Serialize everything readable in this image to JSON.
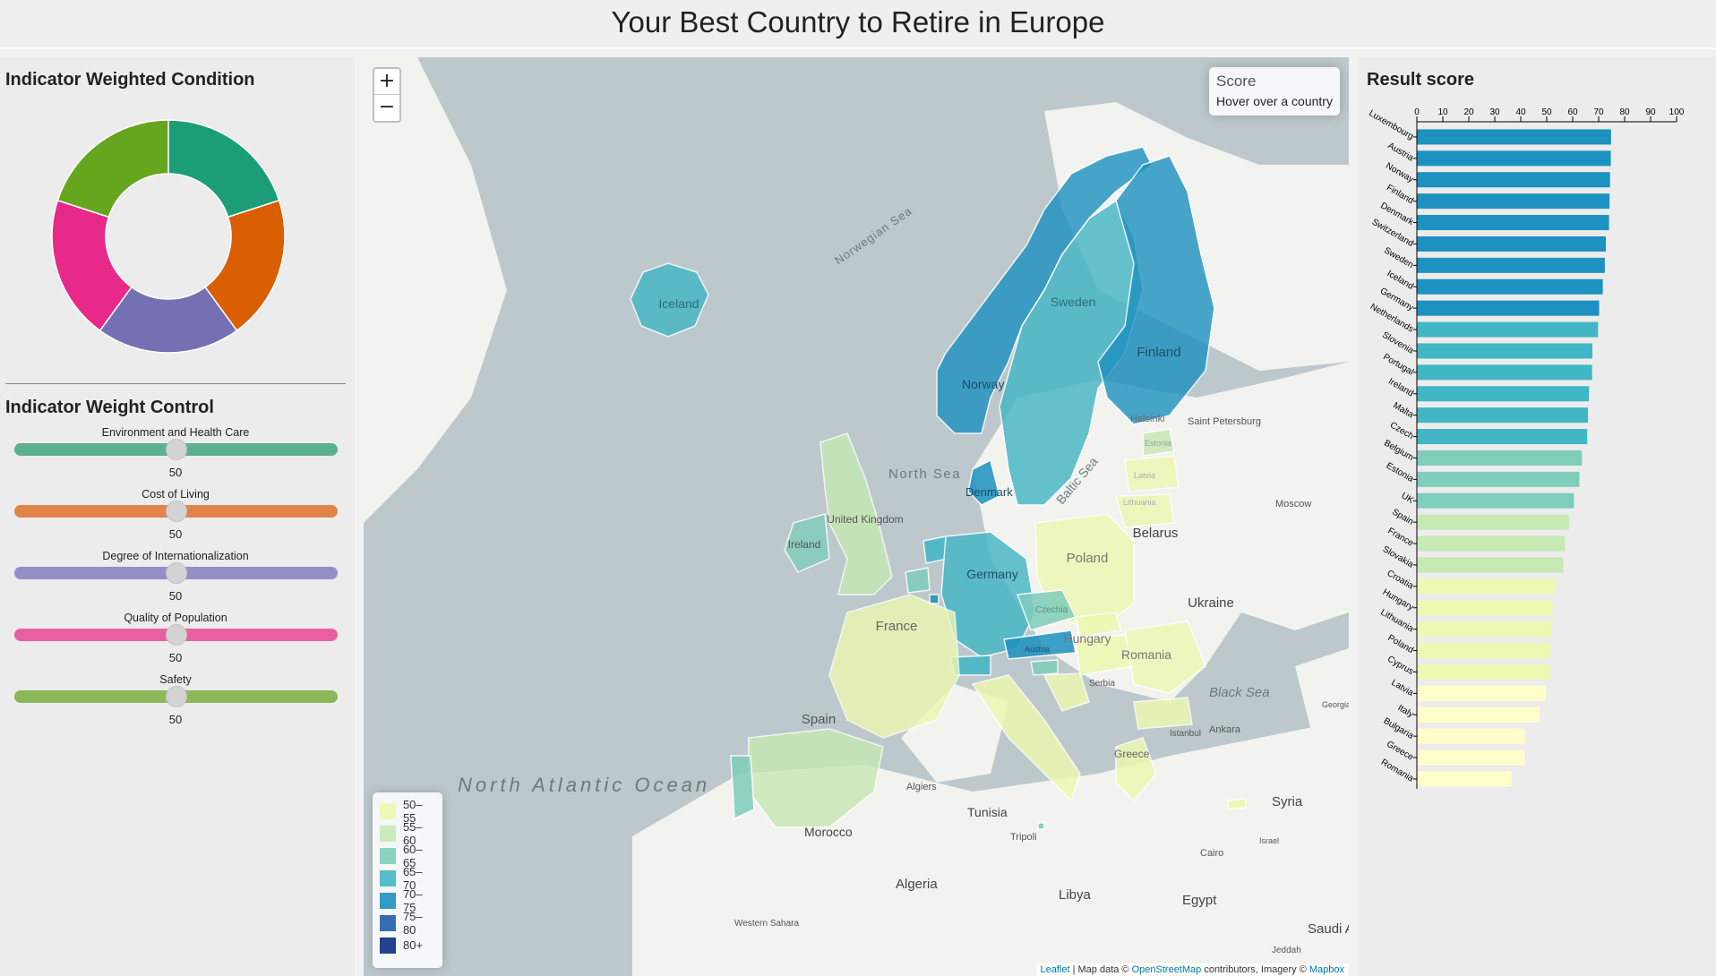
{
  "page": {
    "title": "Your Best Country to Retire in Europe"
  },
  "donut": {
    "title": "Indicator Weighted Condition",
    "segments": [
      {
        "name": "Environment and Health Care",
        "weight": 50,
        "color": "#1b9e77"
      },
      {
        "name": "Cost of Living",
        "weight": 50,
        "color": "#d95f02"
      },
      {
        "name": "Degree of Internationalization",
        "weight": 50,
        "color": "#7570b3"
      },
      {
        "name": "Quality of Population",
        "weight": 50,
        "color": "#e7298a"
      },
      {
        "name": "Safety",
        "weight": 50,
        "color": "#66a61e"
      }
    ]
  },
  "controls": {
    "title": "Indicator Weight Control",
    "sliders": [
      {
        "label": "Environment and Health Care",
        "value": "50",
        "color": "#5bb08e"
      },
      {
        "label": "Cost of Living",
        "value": "50",
        "color": "#e0844a"
      },
      {
        "label": "Degree of Internationalization",
        "value": "50",
        "color": "#9490c6"
      },
      {
        "label": "Quality of Population",
        "value": "50",
        "color": "#e8609f"
      },
      {
        "label": "Safety",
        "value": "50",
        "color": "#8cb85a"
      }
    ]
  },
  "map": {
    "zoom_in": "+",
    "zoom_out": "−",
    "info_title": "Score",
    "info_text": "Hover over a country",
    "legend": [
      {
        "label": "50–55",
        "color": "#edf8b1"
      },
      {
        "label": "55–60",
        "color": "#c7e9b4"
      },
      {
        "label": "60–65",
        "color": "#7fcdbb"
      },
      {
        "label": "65–70",
        "color": "#41b6c4"
      },
      {
        "label": "70–75",
        "color": "#1d91c0"
      },
      {
        "label": "75–80",
        "color": "#225ea8"
      },
      {
        "label": "80+",
        "color": "#0c2c84"
      }
    ],
    "attribution": {
      "leaflet": "Leaflet",
      "sep1": " | Map data © ",
      "osm": "OpenStreetMap",
      "sep2": " contributors, Imagery © ",
      "mapbox": "Mapbox"
    },
    "labels": {
      "norwegian_sea": "Norwegian Sea",
      "north_sea": "North Sea",
      "baltic_sea": "Baltic Sea",
      "black_sea": "Black Sea",
      "atlantic": "North Atlantic Ocean",
      "iceland": "Iceland",
      "norway": "Norway",
      "sweden": "Sweden",
      "finland": "Finland",
      "denmark": "Denmark",
      "germany": "Germany",
      "france": "France",
      "spain": "Spain",
      "poland": "Poland",
      "romania": "Romania",
      "hungary": "Hungary",
      "belarus": "Belarus",
      "ukraine": "Ukraine",
      "tunisia": "Tunisia",
      "morocco": "Morocco",
      "algeria": "Algeria",
      "libya": "Libya",
      "egypt": "Egypt",
      "syria": "Syria",
      "uk": "United Kingdom",
      "ireland": "Ireland",
      "helsinki": "Helsinki",
      "saint_petersburg": "Saint Petersburg",
      "moscow": "Moscow",
      "ankara": "Ankara",
      "istanbul": "Istanbul",
      "algiers": "Algiers",
      "tripoli": "Tripoli",
      "cairo": "Cairo",
      "serbia": "Serbia",
      "greece": "Greece",
      "lithuania": "Lithuania",
      "latvia": "Latvia",
      "estonia": "Estonia",
      "czechia": "Czechia",
      "austria": "Austria",
      "saudi": "Saudi A",
      "georgia": "Georgia",
      "western_sahara": "Western Sahara",
      "israel": "Israel",
      "jeddah": "Jeddah"
    }
  },
  "chart_data": {
    "type": "bar",
    "title": "Result score",
    "orientation": "horizontal",
    "xlim": [
      0,
      100
    ],
    "xticks": [
      "0",
      "10",
      "20",
      "30",
      "40",
      "50",
      "60",
      "70",
      "80",
      "90",
      "100"
    ],
    "categories": [
      "Luxembourg",
      "Austria",
      "Norway",
      "Finland",
      "Denmark",
      "Switzerland",
      "Sweden",
      "Iceland",
      "Germany",
      "Netherlands",
      "Slovenia",
      "Portugal",
      "Ireland",
      "Malta",
      "Czech",
      "Belgium",
      "Estonia",
      "UK",
      "Spain",
      "France",
      "Slovakia",
      "Croatia",
      "Hungary",
      "Lithuania",
      "Poland",
      "Cyprus",
      "Latvia",
      "Italy",
      "Bulgaria",
      "Greece",
      "Romania"
    ],
    "values": [
      74.6,
      74.5,
      74.2,
      74.0,
      73.8,
      72.6,
      72.2,
      71.4,
      70.0,
      69.6,
      67.4,
      67.3,
      66.1,
      65.7,
      65.4,
      63.4,
      62.4,
      60.3,
      58.4,
      56.9,
      56.2,
      53.3,
      52.0,
      51.7,
      51.4,
      51.3,
      49.5,
      47.1,
      41.5,
      41.3,
      36.2
    ]
  }
}
